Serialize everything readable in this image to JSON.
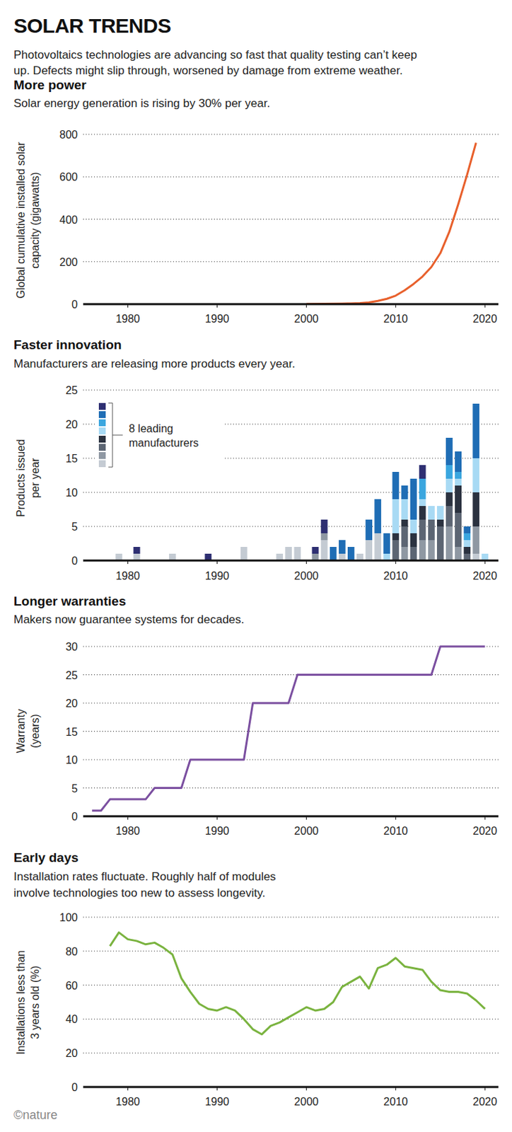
{
  "header": {
    "title": "SOLAR TRENDS",
    "subtitle": [
      "Photovoltaics technologies are advancing so fast that quality testing can’t keep",
      "up. Defects might slip through, worsened by damage from extreme weather."
    ]
  },
  "chart_data": [
    {
      "type": "line",
      "title": "More power",
      "subtitle": [
        "Solar energy generation is rising by 30% per year."
      ],
      "y_label": [
        "Global cumulative installed solar",
        "capacity (gigawatts)"
      ],
      "x": [
        2000,
        2002,
        2004,
        2005,
        2006,
        2007,
        2008,
        2009,
        2010,
        2011,
        2012,
        2013,
        2014,
        2015,
        2016,
        2017,
        2018,
        2019
      ],
      "series": [
        {
          "color": "#e8602c",
          "values": [
            1,
            1.5,
            2.5,
            3.5,
            5,
            8,
            15,
            25,
            40,
            65,
            95,
            130,
            175,
            240,
            340,
            470,
            610,
            760
          ]
        }
      ],
      "xlim": [
        1975,
        2021.5
      ],
      "xticks": [
        1980,
        1990,
        2000,
        2010,
        2020
      ],
      "ylim": [
        0,
        800
      ],
      "yticks": [
        0,
        200,
        400,
        600,
        800
      ],
      "grid": true
    },
    {
      "type": "bar",
      "stacked": true,
      "title": "Faster innovation",
      "subtitle": [
        "Manufacturers are releasing more products every year."
      ],
      "y_label": [
        "Products issued",
        "per year"
      ],
      "legend": "top-left",
      "legend_title": [
        "8 leading",
        "manufacturers"
      ],
      "x": [
        1979,
        1981,
        1985,
        1989,
        1993,
        1997,
        1998,
        1999,
        2001,
        2002,
        2003,
        2004,
        2005,
        2006,
        2007,
        2008,
        2009,
        2010,
        2011,
        2012,
        2013,
        2014,
        2015,
        2016,
        2017,
        2018,
        2019,
        2020
      ],
      "series": [
        {
          "color": "#2e2f72",
          "values": [
            0,
            1,
            0,
            1,
            0,
            0,
            0,
            0,
            1,
            2,
            0,
            0,
            0,
            0,
            0,
            0,
            0,
            0,
            0,
            0,
            2,
            0,
            0,
            0,
            0,
            0,
            0,
            0
          ]
        },
        {
          "color": "#1f6db5",
          "values": [
            0,
            0,
            0,
            0,
            0,
            0,
            0,
            0,
            0,
            0,
            2,
            2,
            2,
            0,
            3,
            5,
            3,
            4,
            2,
            6,
            0,
            0,
            0,
            4,
            3,
            1,
            8,
            0
          ]
        },
        {
          "color": "#3aa6df",
          "values": [
            0,
            0,
            0,
            0,
            0,
            0,
            0,
            0,
            0,
            0,
            0,
            0,
            0,
            0,
            0,
            0,
            0,
            0,
            0,
            0,
            3,
            0,
            0,
            2,
            1,
            1,
            0,
            0
          ]
        },
        {
          "color": "#a8daf4",
          "values": [
            0,
            0,
            0,
            0,
            0,
            0,
            0,
            0,
            0,
            0,
            0,
            0,
            0,
            0,
            0,
            0,
            1,
            5,
            3,
            2,
            1,
            2,
            2,
            2,
            1,
            1,
            5,
            1
          ]
        },
        {
          "color": "#2b3240",
          "values": [
            0,
            0,
            0,
            0,
            0,
            0,
            0,
            0,
            0,
            0,
            0,
            0,
            0,
            0,
            0,
            0,
            0,
            1,
            1,
            2,
            2,
            0,
            1,
            2,
            4,
            1,
            5,
            0
          ]
        },
        {
          "color": "#5c6573",
          "values": [
            0,
            0,
            0,
            0,
            0,
            0,
            0,
            0,
            0,
            0,
            0,
            0,
            0,
            0,
            0,
            0,
            0,
            3,
            3,
            2,
            3,
            3,
            5,
            3,
            5,
            1,
            0,
            0
          ]
        },
        {
          "color": "#8f98a3",
          "values": [
            0,
            0,
            0,
            0,
            0,
            0,
            0,
            0,
            1,
            1,
            0,
            0,
            0,
            0,
            0,
            0,
            0,
            0,
            2,
            0,
            3,
            3,
            0,
            5,
            2,
            0,
            4,
            0
          ]
        },
        {
          "color": "#c4cbd3",
          "values": [
            1,
            1,
            1,
            0,
            2,
            1,
            2,
            2,
            0,
            3,
            0,
            1,
            0,
            1,
            3,
            4,
            0,
            0,
            0,
            0,
            0,
            0,
            0,
            0,
            0,
            0,
            1,
            0
          ]
        }
      ],
      "xlim": [
        1975,
        2021.5
      ],
      "xticks": [
        1980,
        1990,
        2000,
        2010,
        2020
      ],
      "ylim": [
        0,
        25
      ],
      "yticks": [
        0,
        5,
        10,
        15,
        20,
        25
      ],
      "grid": true
    },
    {
      "type": "line",
      "title": "Longer warranties",
      "subtitle": [
        "Makers now guarantee systems for decades."
      ],
      "y_label": [
        "Warranty",
        "(years)"
      ],
      "x": [
        1976,
        1977,
        1978,
        1982,
        1983,
        1986,
        1987,
        1993,
        1994,
        1998,
        1999,
        2014,
        2015,
        2020
      ],
      "series": [
        {
          "color": "#7b4fa0",
          "values": [
            1,
            1,
            3,
            3,
            5,
            5,
            10,
            10,
            20,
            20,
            25,
            25,
            30,
            30
          ]
        }
      ],
      "xlim": [
        1975,
        2021.5
      ],
      "xticks": [
        1980,
        1990,
        2000,
        2010,
        2020
      ],
      "ylim": [
        0,
        30
      ],
      "yticks": [
        0,
        5,
        10,
        15,
        20,
        25,
        30
      ],
      "grid": true
    },
    {
      "type": "line",
      "title": "Early days",
      "subtitle": [
        "Installation rates fluctuate. Roughly half of modules",
        "involve technologies too new to assess longevity."
      ],
      "y_label": [
        "Installations less than",
        "3 years old (%)"
      ],
      "x": [
        1978,
        1979,
        1980,
        1981,
        1982,
        1983,
        1984,
        1985,
        1986,
        1987,
        1988,
        1989,
        1990,
        1991,
        1992,
        1993,
        1994,
        1995,
        1996,
        1997,
        1998,
        1999,
        2000,
        2001,
        2002,
        2003,
        2004,
        2005,
        2006,
        2007,
        2008,
        2009,
        2010,
        2011,
        2012,
        2013,
        2014,
        2015,
        2016,
        2017,
        2018,
        2019,
        2020
      ],
      "series": [
        {
          "color": "#7ab33f",
          "values": [
            83,
            91,
            87,
            86,
            84,
            85,
            82,
            78,
            64,
            56,
            49,
            46,
            45,
            47,
            45,
            40,
            34,
            31,
            36,
            38,
            41,
            44,
            47,
            45,
            46,
            50,
            59,
            62,
            65,
            58,
            70,
            72,
            76,
            71,
            70,
            69,
            62,
            57,
            56,
            56,
            55,
            51,
            46
          ]
        }
      ],
      "xlim": [
        1975,
        2021.5
      ],
      "xticks": [
        1980,
        1990,
        2000,
        2010,
        2020
      ],
      "ylim": [
        0,
        100
      ],
      "yticks": [
        0,
        20,
        40,
        60,
        80,
        100
      ],
      "grid": true
    }
  ],
  "credit": "©nature"
}
